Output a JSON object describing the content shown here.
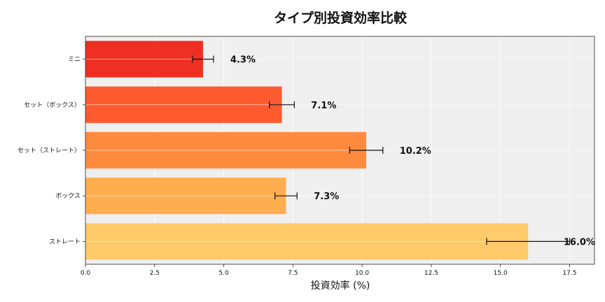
{
  "chart_data": {
    "type": "bar",
    "orientation": "horizontal",
    "title": "タイプ別投資効率比較",
    "xlabel": "投資効率 (%)",
    "ylabel": "",
    "xlim": [
      0,
      18.4
    ],
    "xticks": [
      0.0,
      2.5,
      5.0,
      7.5,
      10.0,
      12.5,
      15.0,
      17.5
    ],
    "xtick_labels": [
      "0.0",
      "2.5",
      "5.0",
      "7.5",
      "10.0",
      "12.5",
      "15.0",
      "17.5"
    ],
    "grid": true,
    "categories": [
      "ミニ",
      "セット（ボックス）",
      "セット（ストレート）",
      "ボックス",
      "ストレート"
    ],
    "values": [
      4.25,
      7.1,
      10.15,
      7.25,
      16.0
    ],
    "value_labels": [
      "4.3%",
      "7.1%",
      "10.2%",
      "7.3%",
      "16.0%"
    ],
    "error": [
      0.38,
      0.45,
      0.6,
      0.4,
      1.5
    ],
    "colors": [
      "#ee2f22",
      "#fd5a30",
      "#fe8b3d",
      "#fead4f",
      "#feca6a"
    ],
    "plot_background": "#efefef"
  }
}
